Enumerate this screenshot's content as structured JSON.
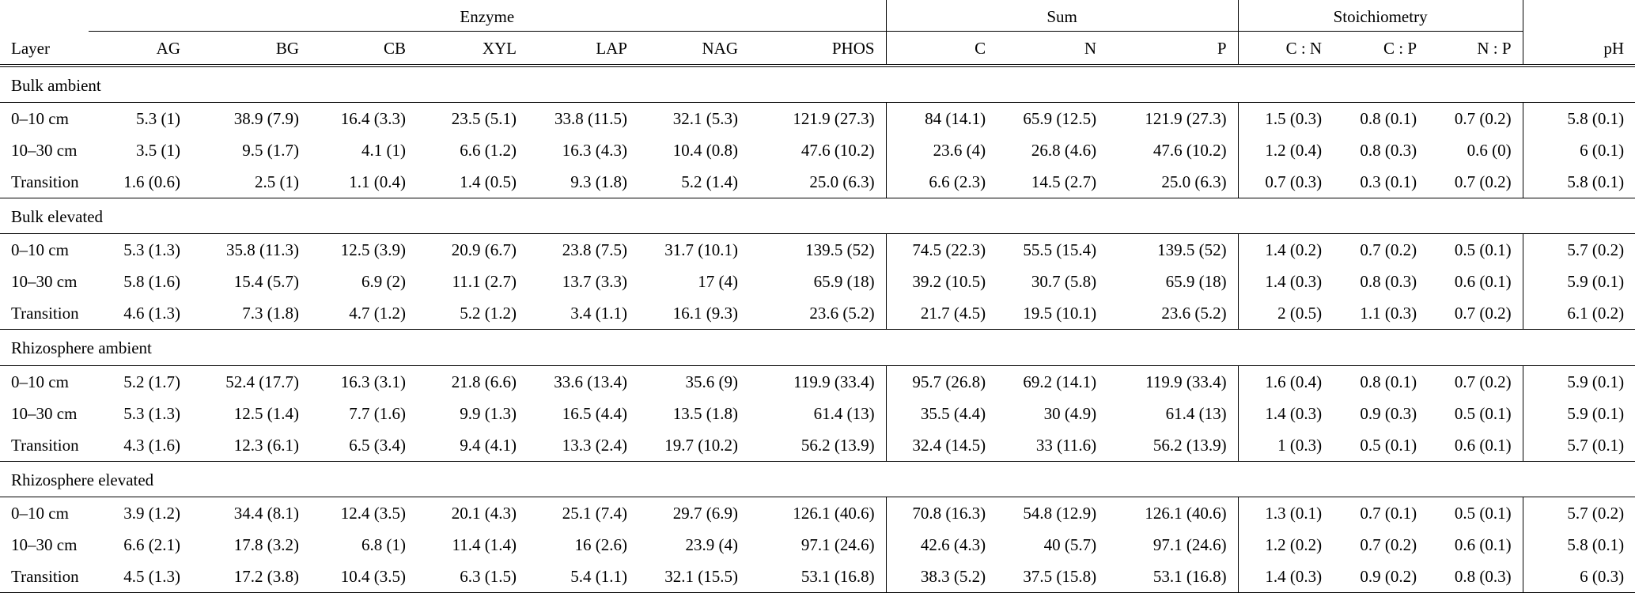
{
  "table": {
    "groups": [
      {
        "label": "Enzyme",
        "span": 7
      },
      {
        "label": "Sum",
        "span": 3
      },
      {
        "label": "Stoichiometry",
        "span": 3
      }
    ],
    "header_cells": [
      "Layer",
      "AG",
      "BG",
      "CB",
      "XYL",
      "LAP",
      "NAG",
      "PHOS",
      "C",
      "N",
      "P",
      "C : N",
      "C : P",
      "N : P",
      "pH"
    ],
    "separator_after_value_index": [
      6,
      9,
      12
    ],
    "sections": [
      {
        "title": "Bulk ambient",
        "rows": [
          {
            "layer": "0–10 cm",
            "values": [
              "5.3 (1)",
              "38.9 (7.9)",
              "16.4 (3.3)",
              "23.5 (5.1)",
              "33.8 (11.5)",
              "32.1 (5.3)",
              "121.9 (27.3)",
              "84 (14.1)",
              "65.9 (12.5)",
              "121.9 (27.3)",
              "1.5 (0.3)",
              "0.8 (0.1)",
              "0.7 (0.2)",
              "5.8 (0.1)"
            ]
          },
          {
            "layer": "10–30 cm",
            "values": [
              "3.5 (1)",
              "9.5 (1.7)",
              "4.1 (1)",
              "6.6 (1.2)",
              "16.3 (4.3)",
              "10.4 (0.8)",
              "47.6 (10.2)",
              "23.6 (4)",
              "26.8 (4.6)",
              "47.6 (10.2)",
              "1.2 (0.4)",
              "0.8 (0.3)",
              "0.6 (0)",
              "6 (0.1)"
            ]
          },
          {
            "layer": "Transition",
            "values": [
              "1.6 (0.6)",
              "2.5 (1)",
              "1.1 (0.4)",
              "1.4 (0.5)",
              "9.3 (1.8)",
              "5.2 (1.4)",
              "25.0 (6.3)",
              "6.6 (2.3)",
              "14.5 (2.7)",
              "25.0 (6.3)",
              "0.7 (0.3)",
              "0.3 (0.1)",
              "0.7 (0.2)",
              "5.8 (0.1)"
            ]
          }
        ]
      },
      {
        "title": "Bulk elevated",
        "rows": [
          {
            "layer": "0–10 cm",
            "values": [
              "5.3 (1.3)",
              "35.8 (11.3)",
              "12.5 (3.9)",
              "20.9 (6.7)",
              "23.8 (7.5)",
              "31.7 (10.1)",
              "139.5 (52)",
              "74.5 (22.3)",
              "55.5 (15.4)",
              "139.5 (52)",
              "1.4 (0.2)",
              "0.7 (0.2)",
              "0.5 (0.1)",
              "5.7 (0.2)"
            ]
          },
          {
            "layer": "10–30 cm",
            "values": [
              "5.8 (1.6)",
              "15.4 (5.7)",
              "6.9 (2)",
              "11.1 (2.7)",
              "13.7 (3.3)",
              "17 (4)",
              "65.9 (18)",
              "39.2 (10.5)",
              "30.7 (5.8)",
              "65.9 (18)",
              "1.4 (0.3)",
              "0.8 (0.3)",
              "0.6 (0.1)",
              "5.9 (0.1)"
            ]
          },
          {
            "layer": "Transition",
            "values": [
              "4.6 (1.3)",
              "7.3 (1.8)",
              "4.7 (1.2)",
              "5.2 (1.2)",
              "3.4 (1.1)",
              "16.1 (9.3)",
              "23.6 (5.2)",
              "21.7 (4.5)",
              "19.5 (10.1)",
              "23.6 (5.2)",
              "2 (0.5)",
              "1.1 (0.3)",
              "0.7 (0.2)",
              "6.1 (0.2)"
            ]
          }
        ]
      },
      {
        "title": "Rhizosphere ambient",
        "rows": [
          {
            "layer": "0–10 cm",
            "values": [
              "5.2 (1.7)",
              "52.4 (17.7)",
              "16.3 (3.1)",
              "21.8 (6.6)",
              "33.6 (13.4)",
              "35.6 (9)",
              "119.9 (33.4)",
              "95.7 (26.8)",
              "69.2 (14.1)",
              "119.9 (33.4)",
              "1.6 (0.4)",
              "0.8 (0.1)",
              "0.7 (0.2)",
              "5.9 (0.1)"
            ]
          },
          {
            "layer": "10–30 cm",
            "values": [
              "5.3 (1.3)",
              "12.5 (1.4)",
              "7.7 (1.6)",
              "9.9 (1.3)",
              "16.5 (4.4)",
              "13.5 (1.8)",
              "61.4 (13)",
              "35.5 (4.4)",
              "30 (4.9)",
              "61.4 (13)",
              "1.4 (0.3)",
              "0.9 (0.3)",
              "0.5 (0.1)",
              "5.9 (0.1)"
            ]
          },
          {
            "layer": "Transition",
            "values": [
              "4.3 (1.6)",
              "12.3 (6.1)",
              "6.5 (3.4)",
              "9.4 (4.1)",
              "13.3 (2.4)",
              "19.7 (10.2)",
              "56.2 (13.9)",
              "32.4 (14.5)",
              "33 (11.6)",
              "56.2 (13.9)",
              "1 (0.3)",
              "0.5 (0.1)",
              "0.6 (0.1)",
              "5.7 (0.1)"
            ]
          }
        ]
      },
      {
        "title": "Rhizosphere elevated",
        "rows": [
          {
            "layer": "0–10 cm",
            "values": [
              "3.9 (1.2)",
              "34.4 (8.1)",
              "12.4 (3.5)",
              "20.1 (4.3)",
              "25.1 (7.4)",
              "29.7 (6.9)",
              "126.1 (40.6)",
              "70.8 (16.3)",
              "54.8 (12.9)",
              "126.1 (40.6)",
              "1.3 (0.1)",
              "0.7 (0.1)",
              "0.5 (0.1)",
              "5.7 (0.2)"
            ]
          },
          {
            "layer": "10–30 cm",
            "values": [
              "6.6 (2.1)",
              "17.8 (3.2)",
              "6.8 (1)",
              "11.4 (1.4)",
              "16 (2.6)",
              "23.9 (4)",
              "97.1 (24.6)",
              "42.6 (4.3)",
              "40 (5.7)",
              "97.1 (24.6)",
              "1.2 (0.2)",
              "0.7 (0.2)",
              "0.6 (0.1)",
              "5.8 (0.1)"
            ]
          },
          {
            "layer": "Transition",
            "values": [
              "4.5 (1.3)",
              "17.2 (3.8)",
              "10.4 (3.5)",
              "6.3 (1.5)",
              "5.4 (1.1)",
              "32.1 (15.5)",
              "53.1 (16.8)",
              "38.3 (5.2)",
              "37.5 (15.8)",
              "53.1 (16.8)",
              "1.4 (0.3)",
              "0.9 (0.2)",
              "0.8 (0.3)",
              "6 (0.3)"
            ]
          }
        ]
      }
    ]
  }
}
